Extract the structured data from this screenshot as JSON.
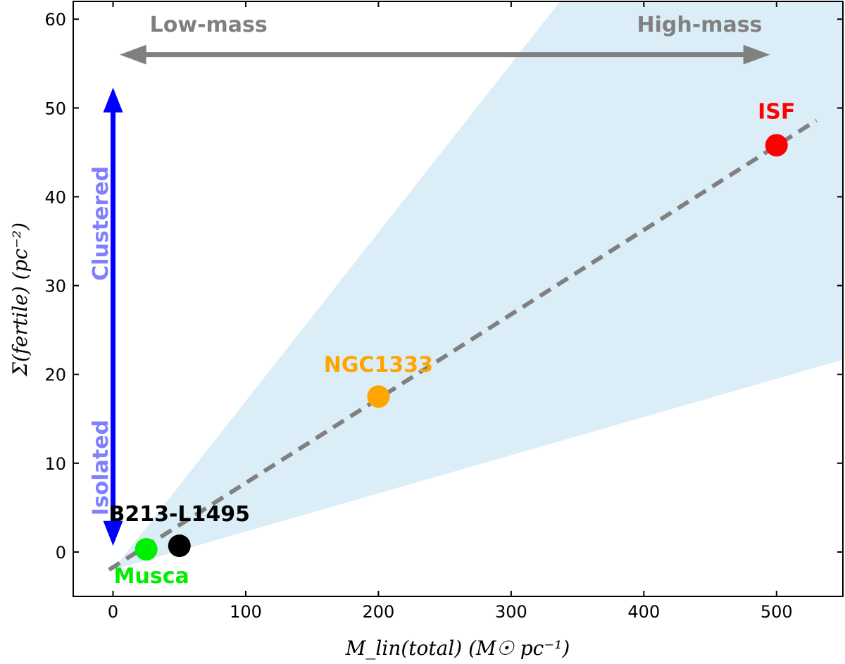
{
  "chart_data": {
    "type": "scatter",
    "xlabel": "M_lin(total) (M☉ pc⁻¹)",
    "ylabel": "Σ(fertile)  (pc⁻²)",
    "xlim": [
      -30,
      550
    ],
    "ylim": [
      -5,
      62
    ],
    "xticks": [
      0,
      100,
      200,
      300,
      400,
      500
    ],
    "yticks": [
      0,
      10,
      20,
      30,
      40,
      50,
      60
    ],
    "points": [
      {
        "name": "Musca",
        "x": 25,
        "y": 0.3,
        "color": "#00ee00"
      },
      {
        "name": "B213-L1495",
        "x": 50,
        "y": 0.7,
        "color": "#000000"
      },
      {
        "name": "NGC1333",
        "x": 200,
        "y": 17.5,
        "color": "#ffa500"
      },
      {
        "name": "ISF",
        "x": 500,
        "y": 45.8,
        "color": "#ff0000"
      }
    ],
    "fit_line": {
      "x": [
        -3,
        530
      ],
      "y": [
        -2,
        48.6
      ],
      "style": "dashed",
      "color": "#808080"
    },
    "shaded_region": {
      "vertex": [
        0,
        -2
      ],
      "upper_slope": 0.19,
      "lower_slope": 0.043,
      "color": "#dbeef7"
    },
    "annotations": {
      "low_mass": "Low-mass",
      "high_mass": "High-mass",
      "clustered": "Clustered",
      "isolated": "Isolated"
    },
    "arrow_colors": {
      "horizontal": "#808080",
      "vertical": "#0000ff",
      "vertical_text": "#8080ff"
    }
  }
}
